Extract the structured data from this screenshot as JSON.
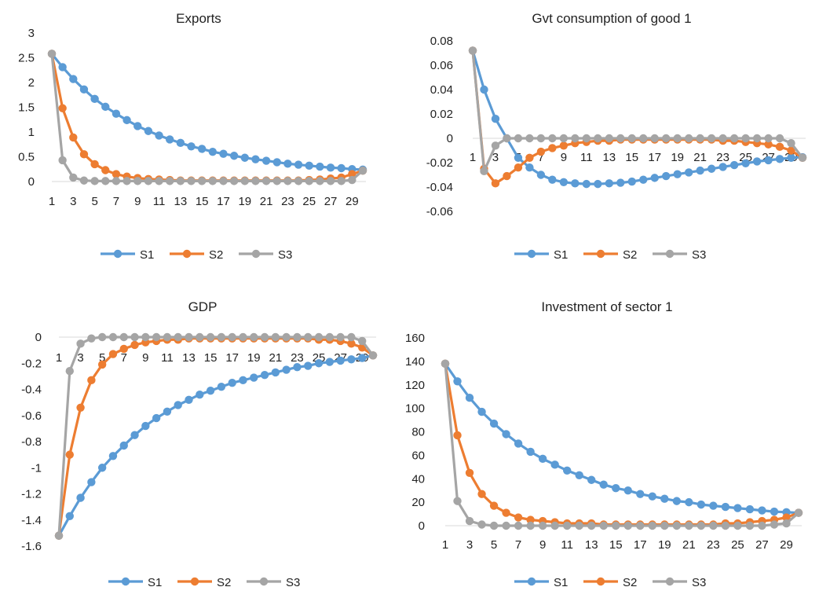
{
  "chart_data": [
    {
      "type": "line",
      "title": "Exports",
      "x": [
        1,
        2,
        3,
        4,
        5,
        6,
        7,
        8,
        9,
        10,
        11,
        12,
        13,
        14,
        15,
        16,
        17,
        18,
        19,
        20,
        21,
        22,
        23,
        24,
        25,
        26,
        27,
        28,
        29,
        30
      ],
      "x_tick_labels": [
        "1",
        "3",
        "5",
        "7",
        "9",
        "11",
        "13",
        "15",
        "17",
        "19",
        "21",
        "23",
        "25",
        "27",
        "29"
      ],
      "y_tick_labels": [
        "0",
        "0.5",
        "1",
        "1.5",
        "2",
        "2.5",
        "3"
      ],
      "ylim": [
        0,
        3
      ],
      "grid": false,
      "legend": "bottom",
      "series": [
        {
          "name": "S1",
          "color": "#5B9BD5",
          "values": [
            2.58,
            2.31,
            2.07,
            1.86,
            1.67,
            1.51,
            1.37,
            1.24,
            1.12,
            1.02,
            0.93,
            0.85,
            0.78,
            0.71,
            0.66,
            0.6,
            0.56,
            0.52,
            0.48,
            0.45,
            0.42,
            0.39,
            0.36,
            0.34,
            0.32,
            0.3,
            0.28,
            0.27,
            0.25,
            0.24
          ]
        },
        {
          "name": "S2",
          "color": "#ED7D31",
          "values": [
            2.58,
            1.48,
            0.89,
            0.55,
            0.35,
            0.23,
            0.15,
            0.1,
            0.07,
            0.05,
            0.04,
            0.03,
            0.02,
            0.02,
            0.02,
            0.02,
            0.02,
            0.02,
            0.02,
            0.02,
            0.02,
            0.02,
            0.02,
            0.02,
            0.03,
            0.04,
            0.06,
            0.08,
            0.15,
            0.22
          ]
        },
        {
          "name": "S3",
          "color": "#A5A5A5",
          "values": [
            2.58,
            0.43,
            0.08,
            0.02,
            0.01,
            0.01,
            0.01,
            0.01,
            0.01,
            0.01,
            0.01,
            0.01,
            0.01,
            0.01,
            0.01,
            0.01,
            0.01,
            0.01,
            0.01,
            0.01,
            0.01,
            0.01,
            0.01,
            0.01,
            0.01,
            0.01,
            0.01,
            0.01,
            0.03,
            0.22
          ]
        }
      ]
    },
    {
      "type": "line",
      "title": "Gvt consumption of good 1",
      "x": [
        1,
        2,
        3,
        4,
        5,
        6,
        7,
        8,
        9,
        10,
        11,
        12,
        13,
        14,
        15,
        16,
        17,
        18,
        19,
        20,
        21,
        22,
        23,
        24,
        25,
        26,
        27,
        28,
        29,
        30
      ],
      "x_tick_labels": [
        "1",
        "3",
        "5",
        "7",
        "9",
        "11",
        "13",
        "15",
        "17",
        "19",
        "21",
        "23",
        "25",
        "27",
        "29"
      ],
      "y_tick_labels": [
        "-0.06",
        "-0.04",
        "-0.02",
        "0",
        "0.02",
        "0.04",
        "0.06",
        "0.08"
      ],
      "ylim": [
        -0.06,
        0.08
      ],
      "grid": false,
      "legend": "bottom",
      "series": [
        {
          "name": "S1",
          "color": "#5B9BD5",
          "values": [
            0.072,
            0.04,
            0.016,
            0,
            -0.016,
            -0.024,
            -0.03,
            -0.034,
            -0.036,
            -0.037,
            -0.0375,
            -0.0375,
            -0.037,
            -0.0365,
            -0.0355,
            -0.034,
            -0.0325,
            -0.031,
            -0.0295,
            -0.028,
            -0.0265,
            -0.025,
            -0.0235,
            -0.022,
            -0.0205,
            -0.019,
            -0.018,
            -0.017,
            -0.016,
            -0.0155
          ]
        },
        {
          "name": "S2",
          "color": "#ED7D31",
          "values": [
            0.072,
            -0.025,
            -0.037,
            -0.031,
            -0.024,
            -0.016,
            -0.011,
            -0.008,
            -0.006,
            -0.004,
            -0.003,
            -0.002,
            -0.002,
            -0.001,
            -0.001,
            -0.001,
            -0.001,
            -0.001,
            -0.001,
            -0.001,
            -0.001,
            -0.001,
            -0.002,
            -0.002,
            -0.003,
            -0.004,
            -0.005,
            -0.007,
            -0.01,
            -0.016
          ]
        },
        {
          "name": "S3",
          "color": "#A5A5A5",
          "values": [
            0.072,
            -0.027,
            -0.006,
            0,
            0,
            0,
            0,
            0,
            0,
            0,
            0,
            0,
            0,
            0,
            0,
            0,
            0,
            0,
            0,
            0,
            0,
            0,
            0,
            0,
            0,
            0,
            0,
            0,
            -0.004,
            -0.016
          ]
        }
      ]
    },
    {
      "type": "line",
      "title": "GDP",
      "x": [
        1,
        2,
        3,
        4,
        5,
        6,
        7,
        8,
        9,
        10,
        11,
        12,
        13,
        14,
        15,
        16,
        17,
        18,
        19,
        20,
        21,
        22,
        23,
        24,
        25,
        26,
        27,
        28,
        29,
        30
      ],
      "x_tick_labels": [
        "1",
        "3",
        "5",
        "7",
        "9",
        "11",
        "13",
        "15",
        "17",
        "19",
        "21",
        "23",
        "25",
        "27",
        "29"
      ],
      "y_tick_labels": [
        "-1.6",
        "-1.4",
        "-1.2",
        "-1",
        "-0.8",
        "-0.6",
        "-0.4",
        "-0.2",
        "0"
      ],
      "ylim": [
        -1.6,
        0
      ],
      "grid": false,
      "legend": "bottom",
      "series": [
        {
          "name": "S1",
          "color": "#5B9BD5",
          "values": [
            -1.52,
            -1.37,
            -1.23,
            -1.11,
            -1.0,
            -0.91,
            -0.83,
            -0.75,
            -0.68,
            -0.62,
            -0.57,
            -0.52,
            -0.48,
            -0.44,
            -0.41,
            -0.38,
            -0.35,
            -0.33,
            -0.31,
            -0.29,
            -0.27,
            -0.25,
            -0.23,
            -0.22,
            -0.2,
            -0.19,
            -0.18,
            -0.17,
            -0.16,
            -0.14
          ]
        },
        {
          "name": "S2",
          "color": "#ED7D31",
          "values": [
            -1.52,
            -0.9,
            -0.54,
            -0.33,
            -0.21,
            -0.13,
            -0.09,
            -0.06,
            -0.04,
            -0.03,
            -0.02,
            -0.02,
            -0.01,
            -0.01,
            -0.01,
            -0.01,
            -0.01,
            -0.01,
            -0.01,
            -0.01,
            -0.01,
            -0.01,
            -0.01,
            -0.01,
            -0.02,
            -0.02,
            -0.03,
            -0.05,
            -0.08,
            -0.14
          ]
        },
        {
          "name": "S3",
          "color": "#A5A5A5",
          "values": [
            -1.52,
            -0.26,
            -0.05,
            -0.01,
            0,
            0,
            0,
            0,
            0,
            0,
            0,
            0,
            0,
            0,
            0,
            0,
            0,
            0,
            0,
            0,
            0,
            0,
            0,
            0,
            0,
            0,
            0,
            0,
            -0.03,
            -0.14
          ]
        }
      ]
    },
    {
      "type": "line",
      "title": "Investment of sector 1",
      "x": [
        1,
        2,
        3,
        4,
        5,
        6,
        7,
        8,
        9,
        10,
        11,
        12,
        13,
        14,
        15,
        16,
        17,
        18,
        19,
        20,
        21,
        22,
        23,
        24,
        25,
        26,
        27,
        28,
        29,
        30
      ],
      "x_tick_labels": [
        "1",
        "3",
        "5",
        "7",
        "9",
        "11",
        "13",
        "15",
        "17",
        "19",
        "21",
        "23",
        "25",
        "27",
        "29"
      ],
      "y_tick_labels": [
        "0",
        "20",
        "40",
        "60",
        "80",
        "100",
        "120",
        "140",
        "160"
      ],
      "ylim": [
        0,
        160
      ],
      "grid": false,
      "legend": "bottom",
      "series": [
        {
          "name": "S1",
          "color": "#5B9BD5",
          "values": [
            138,
            123,
            109,
            97,
            87,
            78,
            70,
            63,
            57,
            52,
            47,
            43,
            39,
            35,
            32,
            30,
            27,
            25,
            23,
            21,
            20,
            18,
            17,
            16,
            15,
            14,
            13,
            12,
            11.5,
            11
          ]
        },
        {
          "name": "S2",
          "color": "#ED7D31",
          "values": [
            138,
            77,
            45,
            27,
            17,
            11,
            7,
            5,
            4,
            3,
            2,
            2,
            2,
            1,
            1,
            1,
            1,
            1,
            1,
            1,
            1,
            1,
            1,
            2,
            2,
            3,
            4,
            5,
            7,
            11
          ]
        },
        {
          "name": "S3",
          "color": "#A5A5A5",
          "values": [
            138,
            21,
            4,
            1,
            0,
            0,
            0,
            0,
            0,
            0,
            0,
            0,
            0,
            0,
            0,
            0,
            0,
            0,
            0,
            0,
            0,
            0,
            0,
            0,
            0,
            0,
            0,
            1,
            2,
            11
          ]
        }
      ]
    }
  ]
}
